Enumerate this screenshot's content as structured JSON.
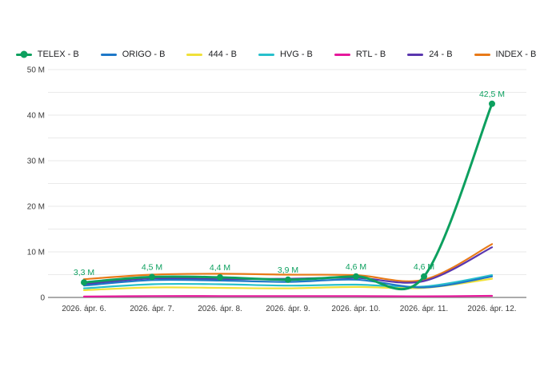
{
  "page": {
    "background": "#ffffff"
  },
  "legend": {
    "position": "top-center",
    "items": [
      {
        "label": "TELEX - B",
        "marker": "line-dot"
      },
      {
        "label": "ORIGO - B",
        "marker": "line"
      },
      {
        "label": "444 - B",
        "marker": "line"
      },
      {
        "label": "HVG - B",
        "marker": "line"
      },
      {
        "label": "RTL - B",
        "marker": "line"
      },
      {
        "label": "24 - B",
        "marker": "line"
      },
      {
        "label": "INDEX - B",
        "marker": "line"
      }
    ]
  },
  "chart_data": {
    "type": "line",
    "title": "",
    "xlabel": "",
    "ylabel": "",
    "line_style": "smooth",
    "grid": "on",
    "legend_position": "top",
    "categories": [
      "2026. ápr. 6.",
      "2026. ápr. 7.",
      "2026. ápr. 8.",
      "2026. ápr. 9.",
      "2026. ápr. 10.",
      "2026. ápr. 11.",
      "2026. ápr. 12."
    ],
    "series": [
      {
        "name": "TELEX - B",
        "color": "#0da05f",
        "show_points": true,
        "values": [
          3.3,
          4.5,
          4.4,
          3.9,
          4.6,
          4.6,
          42.5
        ],
        "point_labels": [
          "3,3 M",
          "4,5 M",
          "4,4 M",
          "3,9 M",
          "4,6 M",
          "4,6 M",
          "42,5 M"
        ]
      },
      {
        "name": "ORIGO - B",
        "color": "#1e78c8",
        "show_points": false,
        "values": [
          2.6,
          3.8,
          3.7,
          3.4,
          3.9,
          2.2,
          4.6
        ],
        "point_labels": []
      },
      {
        "name": "444 - B",
        "color": "#f0e13a",
        "show_points": false,
        "values": [
          1.6,
          2.2,
          2.1,
          2.0,
          2.3,
          2.1,
          4.1
        ],
        "point_labels": []
      },
      {
        "name": "HVG - B",
        "color": "#28c0cc",
        "show_points": false,
        "values": [
          2.0,
          2.9,
          2.9,
          2.6,
          2.8,
          2.4,
          4.9
        ],
        "point_labels": []
      },
      {
        "name": "RTL - B",
        "color": "#e6189b",
        "show_points": false,
        "values": [
          0.2,
          0.3,
          0.3,
          0.3,
          0.3,
          0.25,
          0.35
        ],
        "point_labels": []
      },
      {
        "name": "24 - B",
        "color": "#5a36ae",
        "show_points": false,
        "values": [
          2.9,
          4.2,
          4.0,
          4.1,
          4.3,
          3.6,
          11.0
        ],
        "point_labels": []
      },
      {
        "name": "INDEX - B",
        "color": "#e87a18",
        "show_points": false,
        "values": [
          4.0,
          5.0,
          5.2,
          5.0,
          4.9,
          3.9,
          11.7
        ],
        "point_labels": []
      }
    ],
    "ylim": [
      0,
      50
    ],
    "grid_step": 5,
    "y_ticks": [
      {
        "value": 0,
        "label": "0"
      },
      {
        "value": 10,
        "label": "10 M"
      },
      {
        "value": 20,
        "label": "20 M"
      },
      {
        "value": 30,
        "label": "30 M"
      },
      {
        "value": 40,
        "label": "40 M"
      },
      {
        "value": 50,
        "label": "50 M"
      }
    ],
    "colors": {
      "grid_line": "#eaeaea",
      "axis_line": "#8f8f8f",
      "tick_label": "#3a3a3a"
    }
  }
}
